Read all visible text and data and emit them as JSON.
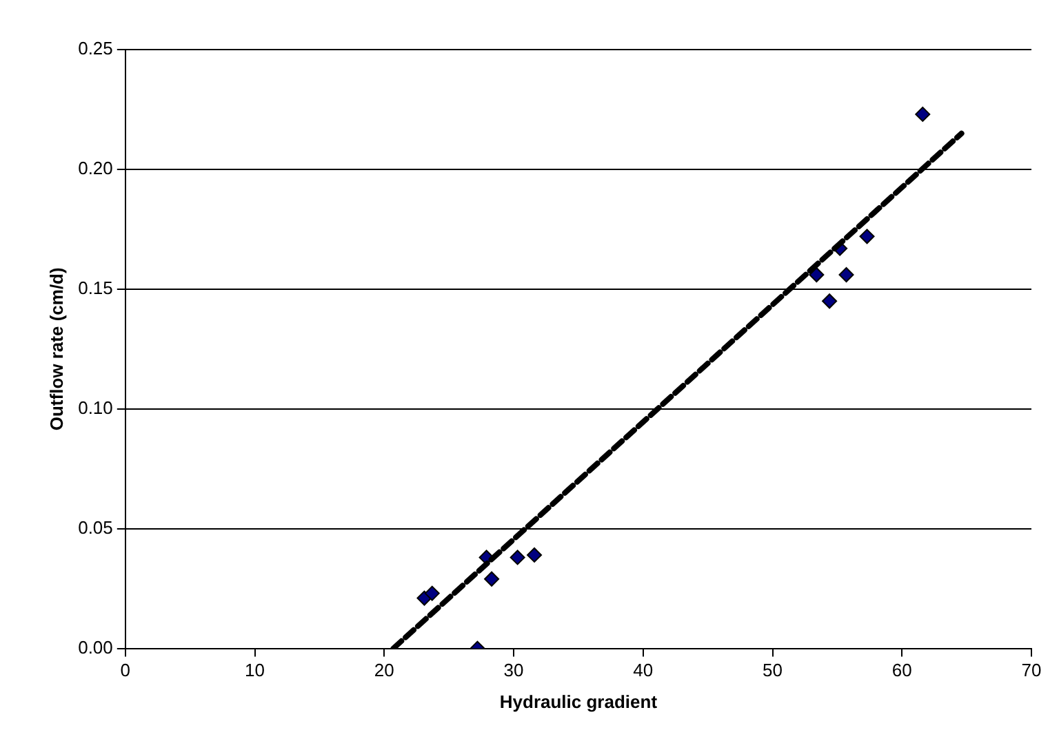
{
  "chart_data": {
    "type": "scatter",
    "xlabel": "Hydraulic gradient",
    "ylabel": "Outflow rate (cm/d)",
    "xlim": [
      0,
      70
    ],
    "xticks": [
      0,
      10,
      20,
      30,
      40,
      50,
      60,
      70
    ],
    "ylim": [
      0,
      0.25
    ],
    "yticks": [
      {
        "value": 0,
        "label": "0.00"
      },
      {
        "value": 0.05,
        "label": "0.05"
      },
      {
        "value": 0.1,
        "label": "0.10"
      },
      {
        "value": 0.15,
        "label": "0.15"
      },
      {
        "value": 0.2,
        "label": "0.20"
      },
      {
        "value": 0.25,
        "label": "0.25"
      }
    ],
    "grid": "y",
    "legend": false,
    "marker": "diamond",
    "series": [
      {
        "color": "#000080",
        "x": [
          23.1,
          23.7,
          27.2,
          27.9,
          28.3,
          30.3,
          31.6,
          53.4,
          54.4,
          55.2,
          55.7,
          57.3,
          61.6
        ],
        "values": [
          0.021,
          0.023,
          0.0,
          0.038,
          0.029,
          0.038,
          0.039,
          0.156,
          0.145,
          0.167,
          0.156,
          0.172,
          0.223
        ]
      },
      {
        "type": "line",
        "color": "#000000",
        "line_style": "dashed",
        "marker": "none",
        "x": [
          20.7,
          64.6
        ],
        "values": [
          0.0,
          0.215
        ]
      }
    ]
  }
}
